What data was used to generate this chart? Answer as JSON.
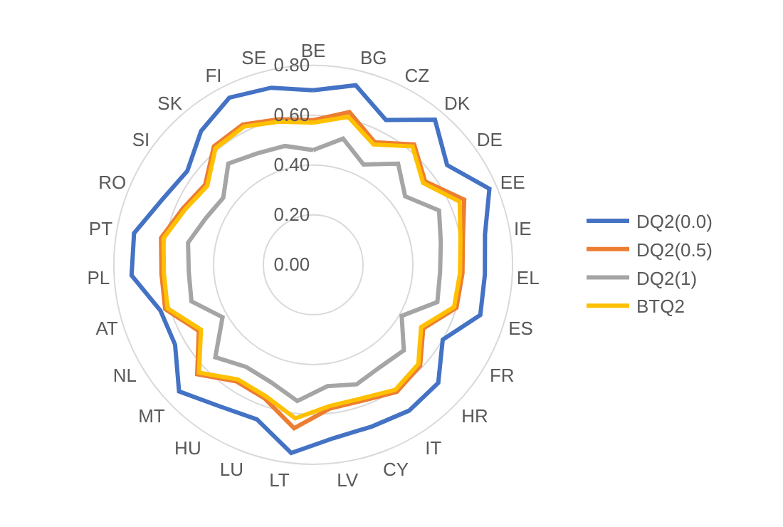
{
  "chart_data": {
    "type": "radar",
    "categories": [
      "BE",
      "BG",
      "CZ",
      "DK",
      "DE",
      "EE",
      "IE",
      "EL",
      "ES",
      "FR",
      "HR",
      "IT",
      "CY",
      "LV",
      "LT",
      "LU",
      "HU",
      "MT",
      "NL",
      "AT",
      "PL",
      "PT",
      "RO",
      "SI",
      "SK",
      "FI",
      "SE"
    ],
    "series": [
      {
        "name": "DQ2(0.0)",
        "color": "#4472c4",
        "values": [
          0.7,
          0.74,
          0.65,
          0.76,
          0.67,
          0.77,
          0.7,
          0.69,
          0.7,
          0.6,
          0.69,
          0.7,
          0.69,
          0.7,
          0.76,
          0.66,
          0.68,
          0.74,
          0.64,
          0.64,
          0.73,
          0.73,
          0.66,
          0.63,
          0.7,
          0.75,
          0.73
        ]
      },
      {
        "name": "DQ2(0.5)",
        "color": "#ed7d31",
        "values": [
          0.58,
          0.63,
          0.55,
          0.63,
          0.56,
          0.66,
          0.61,
          0.6,
          0.6,
          0.51,
          0.59,
          0.61,
          0.58,
          0.58,
          0.66,
          0.57,
          0.56,
          0.64,
          0.53,
          0.62,
          0.61,
          0.62,
          0.57,
          0.54,
          0.62,
          0.63,
          0.6
        ]
      },
      {
        "name": "DQ2(1)",
        "color": "#a5a5a5",
        "values": [
          0.46,
          0.52,
          0.45,
          0.53,
          0.46,
          0.55,
          0.52,
          0.51,
          0.52,
          0.41,
          0.5,
          0.49,
          0.51,
          0.49,
          0.55,
          0.5,
          0.49,
          0.54,
          0.42,
          0.51,
          0.5,
          0.51,
          0.47,
          0.45,
          0.53,
          0.5,
          0.49
        ]
      },
      {
        "name": "BTQ2",
        "color": "#ffc000",
        "values": [
          0.57,
          0.61,
          0.54,
          0.62,
          0.55,
          0.64,
          0.6,
          0.59,
          0.59,
          0.5,
          0.58,
          0.6,
          0.57,
          0.57,
          0.62,
          0.56,
          0.55,
          0.63,
          0.52,
          0.61,
          0.6,
          0.61,
          0.56,
          0.53,
          0.61,
          0.62,
          0.59
        ]
      }
    ],
    "ylim": [
      0,
      0.8
    ],
    "yticks": [
      {
        "value": 0,
        "label": "0.00"
      },
      {
        "value": 0.2,
        "label": "0.20"
      },
      {
        "value": 0.4,
        "label": "0.40"
      },
      {
        "value": 0.6,
        "label": "0.60"
      },
      {
        "value": 0.8,
        "label": "0.80"
      }
    ],
    "grid": "y",
    "legend": "right",
    "marker": "none",
    "line_style": "solid"
  }
}
